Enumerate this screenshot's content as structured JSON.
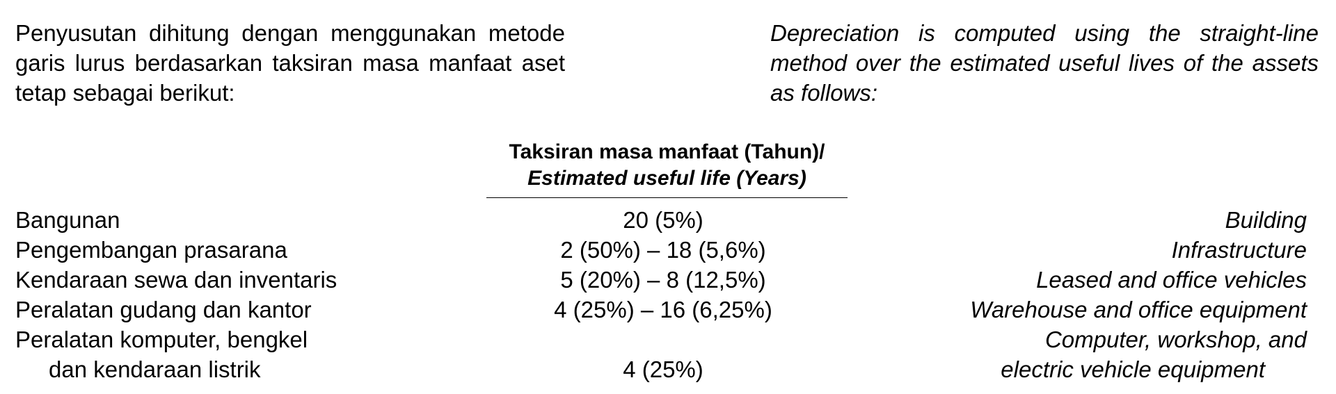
{
  "intro": {
    "id": "Penyusutan dihitung dengan menggunakan metode garis lurus berdasarkan taksiran masa manfaat aset tetap sebagai berikut:",
    "en": "Depreciation is computed using the straight-line method over the estimated useful lives of the assets as follows:"
  },
  "table": {
    "header": [
      "Taksiran masa manfaat (Tahun)/",
      "Estimated useful life (Years)"
    ],
    "rows": [
      {
        "id": [
          "Bangunan"
        ],
        "value": "20 (5%)",
        "en": [
          "Building"
        ]
      },
      {
        "id": [
          "Pengembangan prasarana"
        ],
        "value": "2 (50%) – 18 (5,6%)",
        "en": [
          "Infrastructure"
        ]
      },
      {
        "id": [
          "Kendaraan sewa dan inventaris"
        ],
        "value": "5 (20%) – 8 (12,5%)",
        "en": [
          "Leased and office vehicles"
        ]
      },
      {
        "id": [
          "Peralatan gudang dan kantor"
        ],
        "value": "4 (25%) – 16 (6,25%)",
        "en": [
          "Warehouse and office equipment"
        ]
      },
      {
        "id": [
          "Peralatan komputer, bengkel",
          "dan kendaraan listrik"
        ],
        "value": "4 (25%)",
        "en": [
          "Computer, workshop, and",
          "electric vehicle equipment"
        ]
      }
    ]
  }
}
